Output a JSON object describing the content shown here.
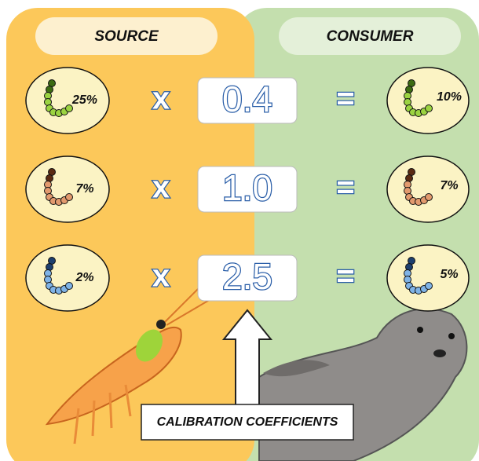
{
  "source": {
    "title": "SOURCE"
  },
  "consumer": {
    "title": "CONSUMER"
  },
  "rows": [
    {
      "source": "25%",
      "operator": "x",
      "coefficient": "0.4",
      "equals": "=",
      "consumer": "10%"
    },
    {
      "source": "7%",
      "operator": "x",
      "coefficient": "1.0",
      "equals": "=",
      "consumer": "7%"
    },
    {
      "source": "2%",
      "operator": "x",
      "coefficient": "2.5",
      "equals": "=",
      "consumer": "5%"
    }
  ],
  "calibration_label": "CALIBRATION COEFFICIENTS"
}
